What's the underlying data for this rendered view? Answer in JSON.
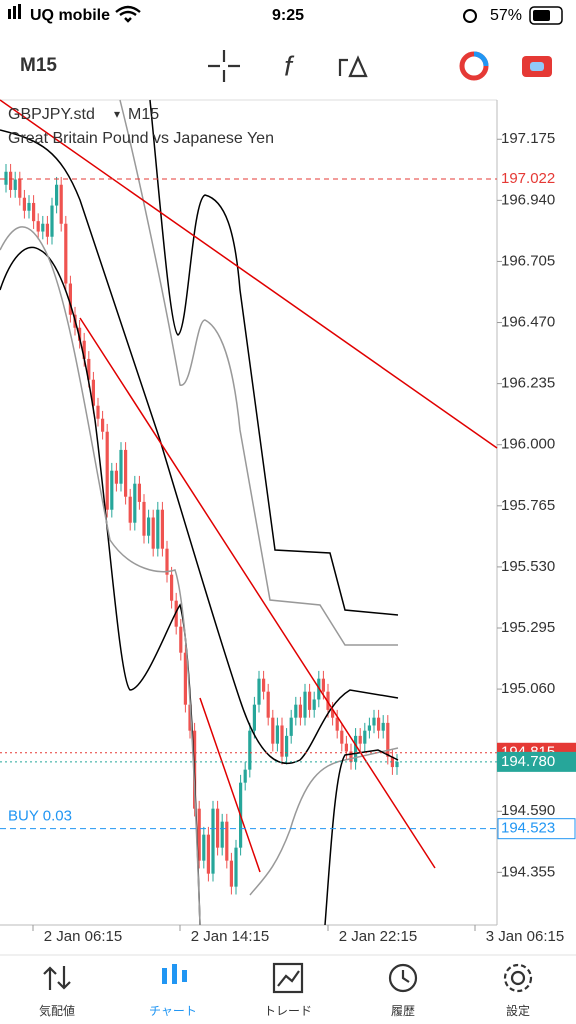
{
  "status_bar": {
    "carrier": "UQ mobile",
    "time": "9:25",
    "battery": "57%"
  },
  "toolbar": {
    "timeframe": "M15"
  },
  "chart": {
    "symbol": "GBPJPY.std",
    "timeframe": "M15",
    "description": "Great Britain Pound vs Japanese Yen",
    "up_color": "#26a69a",
    "down_color": "#ef5350",
    "ylim": [
      194.1525,
      197.326
    ],
    "yticks": [
      197.175,
      {
        "value": 196.94,
        "label": "196.940"
      },
      196.705,
      {
        "value": 196.47,
        "label": "196.470"
      },
      196.235,
      {
        "value": 196,
        "label": "196.000"
      },
      195.765,
      {
        "value": 195.53,
        "label": "195.530"
      },
      195.295,
      {
        "value": 195.06,
        "label": "195.060"
      },
      {
        "value": 194.59,
        "label": "194.590"
      },
      194.355
    ],
    "xticks": [
      "2 Jan 06:15",
      "2 Jan 14:15",
      "2 Jan 22:15",
      "3 Jan 06:15"
    ],
    "price_lines": [
      {
        "value": 197.022,
        "color": "#e53935"
      },
      {
        "value": 194.815,
        "color": "#e53935"
      },
      {
        "value": 194.78,
        "label": "194.780",
        "color": "#26a69a"
      },
      {
        "value": 194.523,
        "color": "#2196f3"
      }
    ],
    "position": {
      "label": "BUY 0.03",
      "price": 194.523
    },
    "candles": {
      "open": [
        197.0,
        197.05,
        196.98,
        197.02,
        196.95,
        196.9,
        196.93,
        196.86,
        196.82,
        196.85,
        196.8,
        196.92,
        197.0,
        196.85,
        196.62,
        196.5,
        196.45,
        196.4,
        196.33,
        196.25,
        196.15,
        196.1,
        196.05,
        195.75,
        195.9,
        195.85,
        195.98,
        195.8,
        195.7,
        195.85,
        195.78,
        195.65,
        195.72,
        195.6,
        195.75,
        195.6,
        195.5,
        195.4,
        195.3,
        195.2,
        195.0,
        194.9,
        194.6,
        194.4,
        194.5,
        194.35,
        194.6,
        194.45,
        194.55,
        194.4,
        194.3,
        194.45,
        194.7,
        194.75,
        194.9,
        195.0,
        195.1,
        195.05,
        194.95,
        194.85,
        194.92,
        194.8,
        194.88,
        194.95,
        195.0,
        194.95,
        195.05,
        194.98,
        195.02,
        195.1,
        195.05,
        194.98,
        194.95,
        194.9,
        194.85,
        194.82,
        194.78,
        194.88,
        194.85,
        194.9,
        194.92,
        194.95,
        194.9,
        194.93,
        194.8,
        194.76
      ],
      "high": [
        197.08,
        197.08,
        197.05,
        197.05,
        196.98,
        196.96,
        196.96,
        196.89,
        196.88,
        196.88,
        196.95,
        197.03,
        197.03,
        196.88,
        196.65,
        196.53,
        196.48,
        196.43,
        196.36,
        196.28,
        196.18,
        196.13,
        196.08,
        195.93,
        195.93,
        196.01,
        196.01,
        195.83,
        195.88,
        195.88,
        195.81,
        195.75,
        195.75,
        195.78,
        195.78,
        195.63,
        195.53,
        195.43,
        195.33,
        195.23,
        195.03,
        194.93,
        194.63,
        194.53,
        194.53,
        194.63,
        194.63,
        194.58,
        194.58,
        194.43,
        194.48,
        194.73,
        194.78,
        194.93,
        195.03,
        195.13,
        195.13,
        195.08,
        194.98,
        194.95,
        194.95,
        194.91,
        194.98,
        195.03,
        195.03,
        195.08,
        195.08,
        195.05,
        195.13,
        195.13,
        195.08,
        195.01,
        194.98,
        194.93,
        194.88,
        194.85,
        194.91,
        194.91,
        194.93,
        194.95,
        194.98,
        194.98,
        194.96,
        194.96,
        194.83,
        194.81
      ],
      "low": [
        196.97,
        196.95,
        196.95,
        196.92,
        196.87,
        196.87,
        196.83,
        196.79,
        196.79,
        196.77,
        196.77,
        196.89,
        196.82,
        196.59,
        196.47,
        196.42,
        196.37,
        196.3,
        196.22,
        196.12,
        196.07,
        196.02,
        195.72,
        195.72,
        195.82,
        195.82,
        195.77,
        195.67,
        195.67,
        195.75,
        195.62,
        195.62,
        195.57,
        195.57,
        195.57,
        195.47,
        195.37,
        195.27,
        195.17,
        194.97,
        194.87,
        194.57,
        194.37,
        194.37,
        194.32,
        194.32,
        194.42,
        194.42,
        194.37,
        194.27,
        194.27,
        194.42,
        194.67,
        194.72,
        194.87,
        194.97,
        195.02,
        194.92,
        194.82,
        194.82,
        194.77,
        194.77,
        194.85,
        194.92,
        194.92,
        194.92,
        194.95,
        194.95,
        194.99,
        195.02,
        194.95,
        194.92,
        194.87,
        194.82,
        194.79,
        194.75,
        194.75,
        194.82,
        194.82,
        194.87,
        194.89,
        194.87,
        194.87,
        194.77,
        194.73,
        194.73
      ],
      "close": [
        197.05,
        196.98,
        197.02,
        196.95,
        196.9,
        196.93,
        196.86,
        196.82,
        196.85,
        196.8,
        196.92,
        197.0,
        196.85,
        196.62,
        196.5,
        196.45,
        196.4,
        196.33,
        196.25,
        196.15,
        196.1,
        196.05,
        195.75,
        195.9,
        195.85,
        195.98,
        195.8,
        195.7,
        195.85,
        195.78,
        195.65,
        195.72,
        195.6,
        195.75,
        195.6,
        195.5,
        195.4,
        195.3,
        195.2,
        195.0,
        194.9,
        194.6,
        194.4,
        194.5,
        194.35,
        194.6,
        194.45,
        194.55,
        194.4,
        194.3,
        194.45,
        194.7,
        194.75,
        194.9,
        195.0,
        195.1,
        195.05,
        194.95,
        194.85,
        194.92,
        194.8,
        194.88,
        194.95,
        195.0,
        194.95,
        195.05,
        194.98,
        195.02,
        195.1,
        195.05,
        194.98,
        194.95,
        194.9,
        194.85,
        194.82,
        194.78,
        194.88,
        194.85,
        194.9,
        194.92,
        194.95,
        194.9,
        194.93,
        194.8,
        194.76,
        194.78
      ]
    }
  },
  "tabs": [
    "気配値",
    "チャート",
    "トレード",
    "履歴",
    "設定"
  ],
  "active_tab": 1
}
